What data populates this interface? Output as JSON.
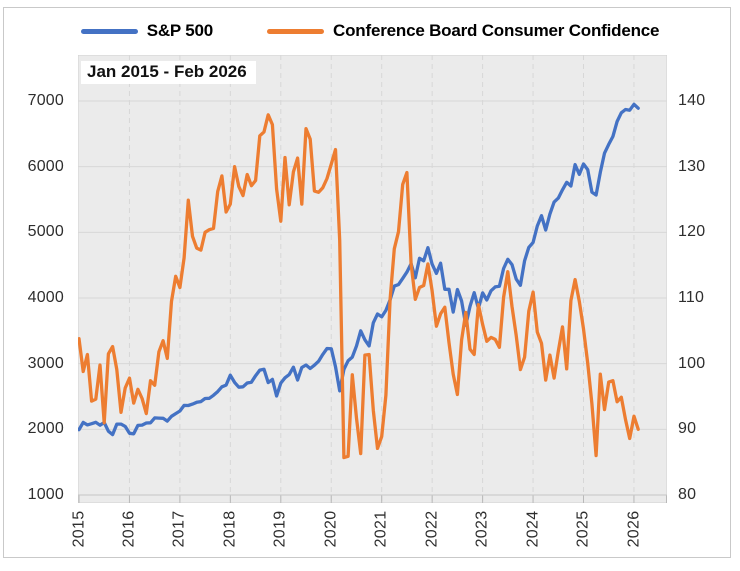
{
  "legend": {
    "items": [
      {
        "label": "S&P 500",
        "color": "#4472C4"
      },
      {
        "label": "Conference Board Consumer Confidence",
        "color": "#ED7D31"
      }
    ]
  },
  "annotation": "Jan 2015 - Feb 2026",
  "colors": {
    "sp500_line": "#4472C4",
    "confidence_line": "#ED7D31",
    "plot_background": "#EBEBEB",
    "gridline": "#D7D7D7",
    "axis_text": "#2E2E2E",
    "frame_border": "#C9C9C9"
  },
  "chart_data": {
    "type": "line",
    "title": "Jan 2015 - Feb 2026",
    "x_frequency": "monthly",
    "x_start": "2015-01",
    "x_end": "2026-02",
    "x_tick_labels": [
      "2015",
      "2016",
      "2017",
      "2018",
      "2019",
      "2020",
      "2021",
      "2022",
      "2023",
      "2024",
      "2025",
      "2026"
    ],
    "left_axis": {
      "series": "S&P 500",
      "min": 1000,
      "max": 7000,
      "tick_step": 1000,
      "ticks": [
        7000,
        6000,
        5000,
        4000,
        3000,
        2000,
        1000
      ]
    },
    "right_axis": {
      "series": "Conference Board Consumer Confidence",
      "min": 80,
      "max": 140,
      "tick_step": 10,
      "ticks": [
        140,
        130,
        120,
        110,
        100,
        90,
        80
      ]
    },
    "grid": {
      "horizontal": "solid",
      "vertical": "dashed-yearly"
    },
    "legend_position": "top",
    "series": [
      {
        "name": "S&P 500",
        "axis": "left",
        "color": "#4472C4",
        "values": [
          1995,
          2105,
          2068,
          2086,
          2107,
          2063,
          2104,
          1972,
          1920,
          2079,
          2080,
          2044,
          1940,
          1932,
          2060,
          2065,
          2097,
          2099,
          2174,
          2171,
          2168,
          2126,
          2199,
          2239,
          2279,
          2364,
          2363,
          2384,
          2412,
          2423,
          2470,
          2472,
          2519,
          2575,
          2648,
          2674,
          2824,
          2714,
          2641,
          2648,
          2705,
          2718,
          2816,
          2902,
          2914,
          2712,
          2760,
          2507,
          2704,
          2785,
          2834,
          2946,
          2752,
          2942,
          2980,
          2926,
          2977,
          3038,
          3141,
          3231,
          3226,
          2954,
          2585,
          2912,
          3044,
          3100,
          3271,
          3500,
          3363,
          3270,
          3622,
          3756,
          3714,
          3811,
          3973,
          4181,
          4204,
          4298,
          4395,
          4523,
          4308,
          4605,
          4567,
          4766,
          4516,
          4374,
          4530,
          4132,
          4132,
          3785,
          4130,
          3955,
          3586,
          3872,
          4080,
          3840,
          4077,
          3970,
          4109,
          4169,
          4180,
          4450,
          4589,
          4508,
          4288,
          4194,
          4568,
          4770,
          4846,
          5096,
          5254,
          5036,
          5278,
          5460,
          5522,
          5648,
          5762,
          5705,
          6032,
          5882,
          6041,
          5955,
          5612,
          5569,
          5912,
          6205,
          6339,
          6460,
          6688,
          6820,
          6870,
          6860,
          6950,
          6890
        ]
      },
      {
        "name": "Conference Board Consumer Confidence",
        "axis": "right",
        "color": "#ED7D31",
        "values": [
          103.8,
          98.8,
          101.4,
          94.3,
          94.6,
          99.8,
          91.0,
          101.5,
          102.6,
          99.1,
          92.6,
          96.3,
          97.8,
          94.0,
          96.1,
          94.7,
          92.4,
          97.4,
          96.7,
          101.8,
          103.5,
          100.8,
          109.5,
          113.3,
          111.6,
          116.1,
          124.9,
          119.4,
          117.6,
          117.3,
          120.0,
          120.4,
          120.6,
          126.2,
          128.6,
          123.1,
          124.3,
          130.0,
          127.0,
          125.6,
          128.8,
          127.1,
          127.9,
          134.7,
          135.3,
          137.9,
          136.4,
          126.6,
          121.7,
          131.4,
          124.2,
          129.2,
          131.3,
          124.3,
          135.8,
          134.2,
          126.3,
          126.1,
          126.8,
          128.2,
          130.4,
          132.6,
          118.8,
          85.7,
          85.9,
          98.3,
          91.7,
          86.3,
          101.3,
          101.4,
          92.9,
          87.1,
          88.9,
          95.2,
          109.8,
          117.5,
          120.1,
          127.3,
          129.1,
          115.2,
          109.8,
          111.6,
          111.9,
          115.2,
          111.1,
          105.7,
          107.6,
          108.6,
          103.2,
          98.4,
          95.3,
          103.6,
          107.8,
          102.2,
          101.4,
          109.0,
          106.0,
          103.4,
          104.0,
          103.7,
          102.5,
          110.1,
          114.0,
          108.7,
          104.3,
          99.1,
          101.0,
          108.0,
          110.9,
          104.8,
          103.1,
          97.5,
          101.3,
          97.8,
          101.9,
          105.6,
          99.2,
          109.6,
          112.8,
          109.5,
          105.3,
          100.1,
          93.9,
          86.0,
          98.4,
          93.0,
          97.2,
          97.4,
          94.2,
          94.9,
          91.5,
          88.6,
          92.0,
          90.0
        ]
      }
    ]
  }
}
